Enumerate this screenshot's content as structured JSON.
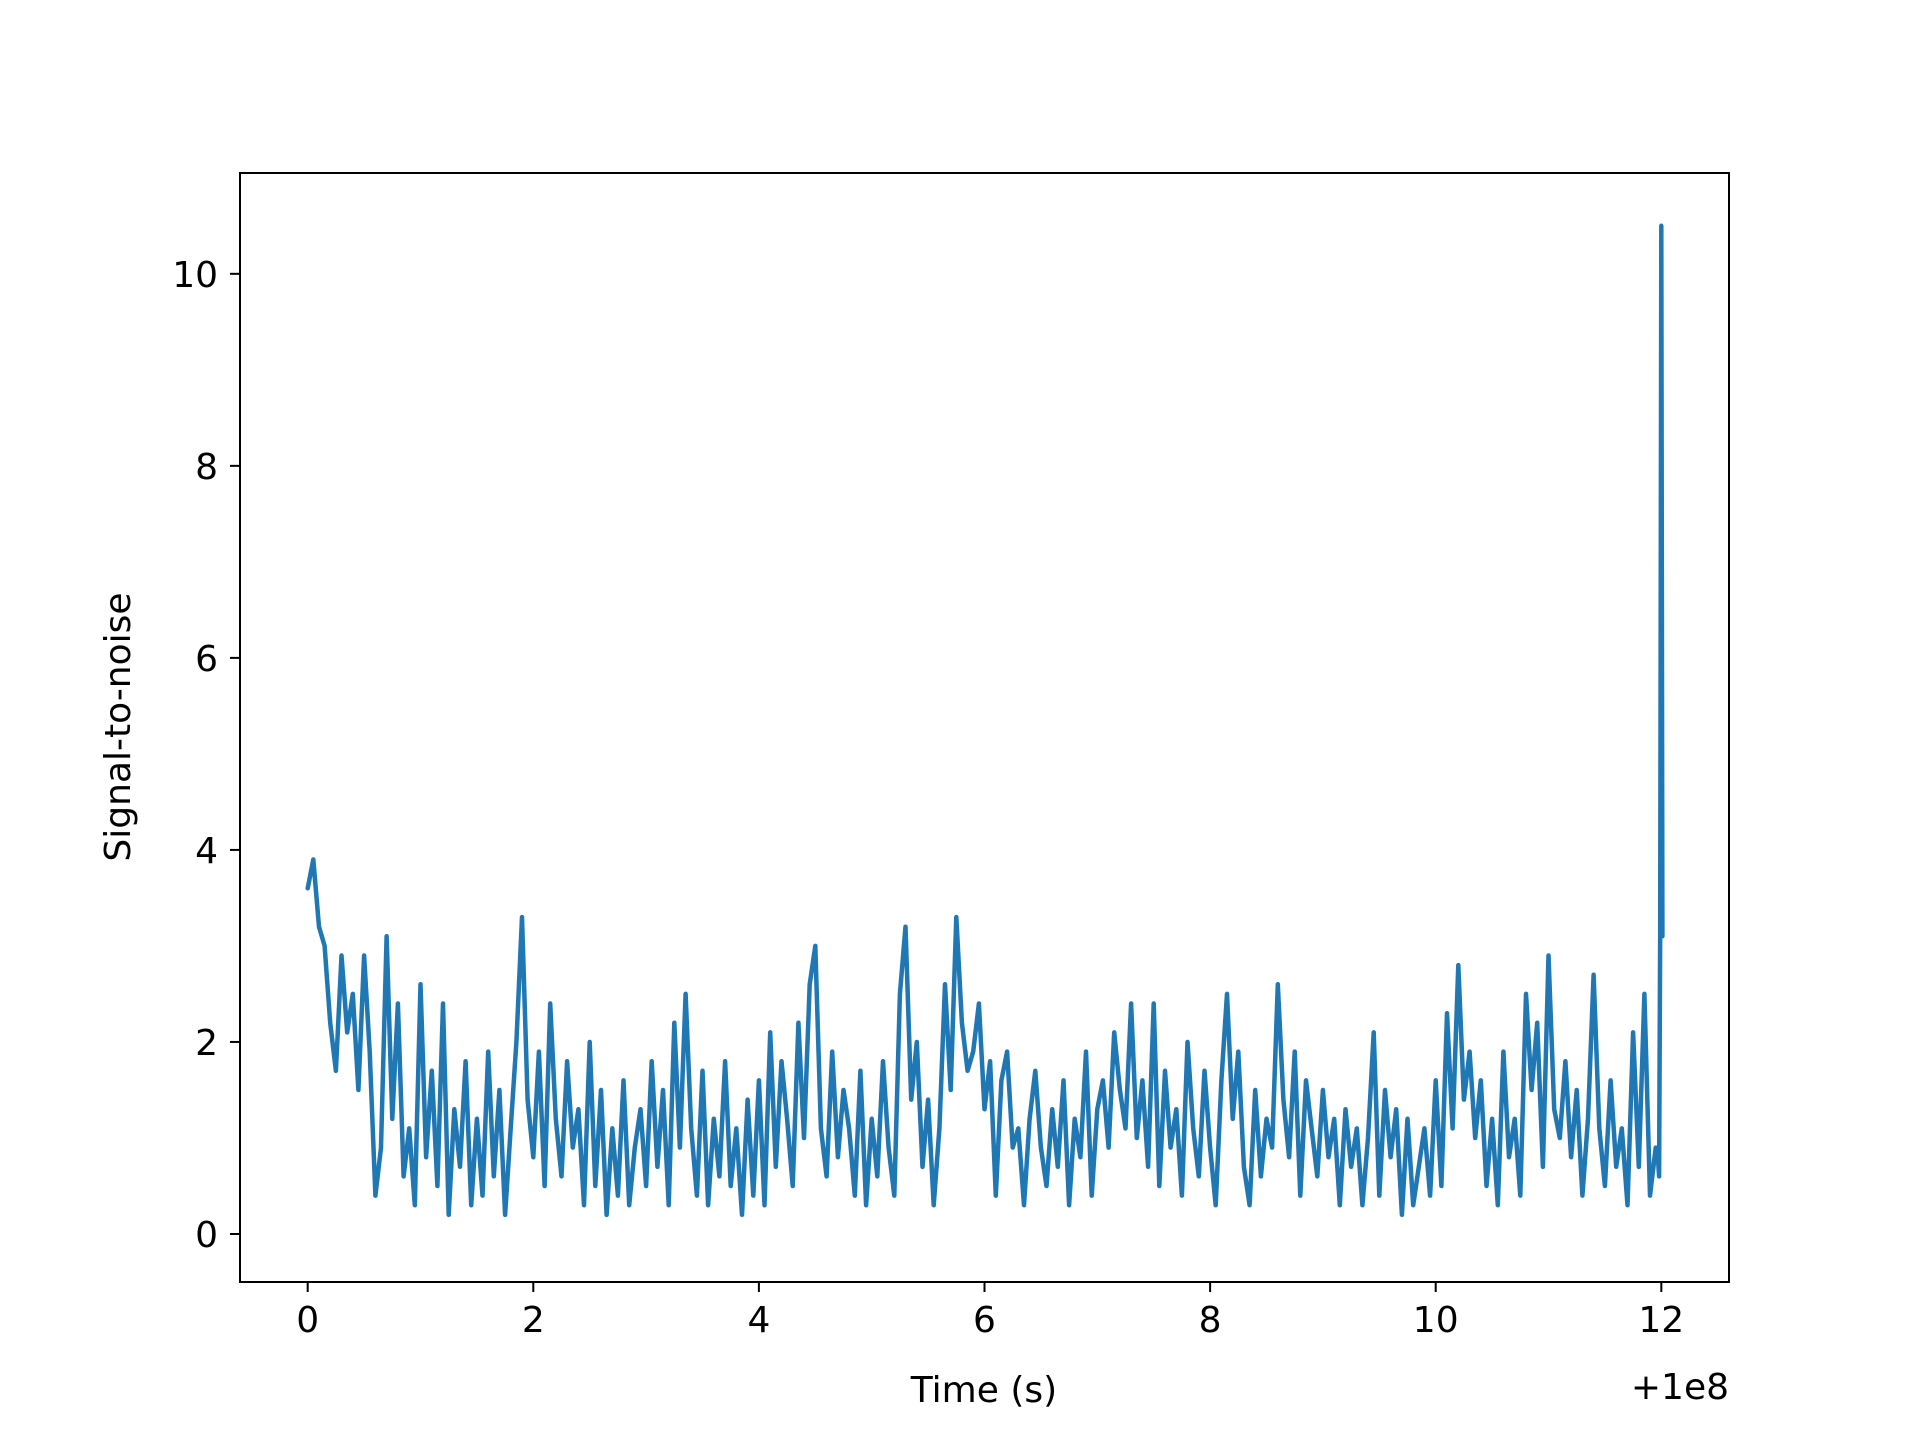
{
  "chart_data": {
    "type": "line",
    "title": "",
    "xlabel": "Time (s)",
    "ylabel": "Signal-to-noise",
    "x_offset_label": "+1e8",
    "xlim": [
      -0.6,
      12.6
    ],
    "ylim": [
      -0.5,
      11.05
    ],
    "xticks": [
      0,
      2,
      4,
      6,
      8,
      10,
      12
    ],
    "xtick_labels": [
      "0",
      "2",
      "4",
      "6",
      "8",
      "10",
      "12"
    ],
    "yticks": [
      0,
      2,
      4,
      6,
      8,
      10
    ],
    "ytick_labels": [
      "0",
      "2",
      "4",
      "6",
      "8",
      "10"
    ],
    "grid": false,
    "series": [
      {
        "color": "#1f77b4",
        "x": [
          0.0,
          0.05,
          0.1,
          0.15,
          0.2,
          0.25,
          0.3,
          0.35,
          0.4,
          0.45,
          0.5,
          0.55,
          0.6,
          0.65,
          0.7,
          0.75,
          0.8,
          0.85,
          0.9,
          0.95,
          1.0,
          1.05,
          1.1,
          1.15,
          1.2,
          1.25,
          1.3,
          1.35,
          1.4,
          1.45,
          1.5,
          1.55,
          1.6,
          1.65,
          1.7,
          1.75,
          1.8,
          1.85,
          1.9,
          1.95,
          2.0,
          2.05,
          2.1,
          2.15,
          2.2,
          2.25,
          2.3,
          2.35,
          2.4,
          2.45,
          2.5,
          2.55,
          2.6,
          2.65,
          2.7,
          2.75,
          2.8,
          2.85,
          2.9,
          2.95,
          3.0,
          3.05,
          3.1,
          3.15,
          3.2,
          3.25,
          3.3,
          3.35,
          3.4,
          3.45,
          3.5,
          3.55,
          3.6,
          3.65,
          3.7,
          3.75,
          3.8,
          3.85,
          3.9,
          3.95,
          4.0,
          4.05,
          4.1,
          4.15,
          4.2,
          4.25,
          4.3,
          4.35,
          4.4,
          4.45,
          4.5,
          4.55,
          4.6,
          4.65,
          4.7,
          4.75,
          4.8,
          4.85,
          4.9,
          4.95,
          5.0,
          5.05,
          5.1,
          5.15,
          5.2,
          5.25,
          5.3,
          5.35,
          5.4,
          5.45,
          5.5,
          5.55,
          5.6,
          5.65,
          5.7,
          5.75,
          5.8,
          5.85,
          5.9,
          5.95,
          6.0,
          6.05,
          6.1,
          6.15,
          6.2,
          6.25,
          6.3,
          6.35,
          6.4,
          6.45,
          6.5,
          6.55,
          6.6,
          6.65,
          6.7,
          6.75,
          6.8,
          6.85,
          6.9,
          6.95,
          7.0,
          7.05,
          7.1,
          7.15,
          7.2,
          7.25,
          7.3,
          7.35,
          7.4,
          7.45,
          7.5,
          7.55,
          7.6,
          7.65,
          7.7,
          7.75,
          7.8,
          7.85,
          7.9,
          7.95,
          8.0,
          8.05,
          8.1,
          8.15,
          8.2,
          8.25,
          8.3,
          8.35,
          8.4,
          8.45,
          8.5,
          8.55,
          8.6,
          8.65,
          8.7,
          8.75,
          8.8,
          8.85,
          8.9,
          8.95,
          9.0,
          9.05,
          9.1,
          9.15,
          9.2,
          9.25,
          9.3,
          9.35,
          9.4,
          9.45,
          9.5,
          9.55,
          9.6,
          9.65,
          9.7,
          9.75,
          9.8,
          9.85,
          9.9,
          9.95,
          10.0,
          10.05,
          10.1,
          10.15,
          10.2,
          10.25,
          10.3,
          10.35,
          10.4,
          10.45,
          10.5,
          10.55,
          10.6,
          10.65,
          10.7,
          10.75,
          10.8,
          10.85,
          10.9,
          10.95,
          11.0,
          11.05,
          11.1,
          11.15,
          11.2,
          11.25,
          11.3,
          11.35,
          11.4,
          11.45,
          11.5,
          11.55,
          11.6,
          11.65,
          11.7,
          11.75,
          11.8,
          11.85,
          11.9,
          11.95,
          11.97,
          11.98,
          11.99,
          12.0,
          12.01
        ],
        "y": [
          3.6,
          3.9,
          3.2,
          3.0,
          2.2,
          1.7,
          2.9,
          2.1,
          2.5,
          1.5,
          2.9,
          1.9,
          0.4,
          0.9,
          3.1,
          1.2,
          2.4,
          0.6,
          1.1,
          0.3,
          2.6,
          0.8,
          1.7,
          0.5,
          2.4,
          0.2,
          1.3,
          0.7,
          1.8,
          0.3,
          1.2,
          0.4,
          1.9,
          0.6,
          1.5,
          0.2,
          1.1,
          2.0,
          3.3,
          1.4,
          0.8,
          1.9,
          0.5,
          2.4,
          1.2,
          0.6,
          1.8,
          0.9,
          1.3,
          0.3,
          2.0,
          0.5,
          1.5,
          0.2,
          1.1,
          0.4,
          1.6,
          0.3,
          0.9,
          1.3,
          0.5,
          1.8,
          0.7,
          1.5,
          0.3,
          2.2,
          0.9,
          2.5,
          1.1,
          0.4,
          1.7,
          0.3,
          1.2,
          0.6,
          1.8,
          0.5,
          1.1,
          0.2,
          1.4,
          0.4,
          1.6,
          0.3,
          2.1,
          0.7,
          1.8,
          1.2,
          0.5,
          2.2,
          1.0,
          2.6,
          3.0,
          1.1,
          0.6,
          1.9,
          0.8,
          1.5,
          1.1,
          0.4,
          1.7,
          0.3,
          1.2,
          0.6,
          1.8,
          0.9,
          0.4,
          2.5,
          3.2,
          1.4,
          2.0,
          0.7,
          1.4,
          0.3,
          1.1,
          2.6,
          1.5,
          3.3,
          2.2,
          1.7,
          1.9,
          2.4,
          1.3,
          1.8,
          0.4,
          1.6,
          1.9,
          0.9,
          1.1,
          0.3,
          1.2,
          1.7,
          0.9,
          0.5,
          1.3,
          0.7,
          1.6,
          0.3,
          1.2,
          0.8,
          1.9,
          0.4,
          1.3,
          1.6,
          0.9,
          2.1,
          1.5,
          1.1,
          2.4,
          1.0,
          1.6,
          0.7,
          2.4,
          0.5,
          1.7,
          0.9,
          1.3,
          0.4,
          2.0,
          1.1,
          0.6,
          1.7,
          0.9,
          0.3,
          1.6,
          2.5,
          1.2,
          1.9,
          0.7,
          0.3,
          1.5,
          0.6,
          1.2,
          0.9,
          2.6,
          1.4,
          0.8,
          1.9,
          0.4,
          1.6,
          1.1,
          0.6,
          1.5,
          0.8,
          1.2,
          0.3,
          1.3,
          0.7,
          1.1,
          0.3,
          1.0,
          2.1,
          0.4,
          1.5,
          0.8,
          1.3,
          0.2,
          1.2,
          0.3,
          0.7,
          1.1,
          0.4,
          1.6,
          0.5,
          2.3,
          1.1,
          2.8,
          1.4,
          1.9,
          1.0,
          1.6,
          0.5,
          1.2,
          0.3,
          1.9,
          0.8,
          1.2,
          0.4,
          2.5,
          1.5,
          2.2,
          0.7,
          2.9,
          1.3,
          1.0,
          1.8,
          0.8,
          1.5,
          0.4,
          1.2,
          2.7,
          1.1,
          0.5,
          1.6,
          0.7,
          1.1,
          0.3,
          2.1,
          0.7,
          2.5,
          0.4,
          0.9,
          0.8,
          0.6,
          3.2,
          10.5,
          3.1
        ]
      }
    ]
  }
}
